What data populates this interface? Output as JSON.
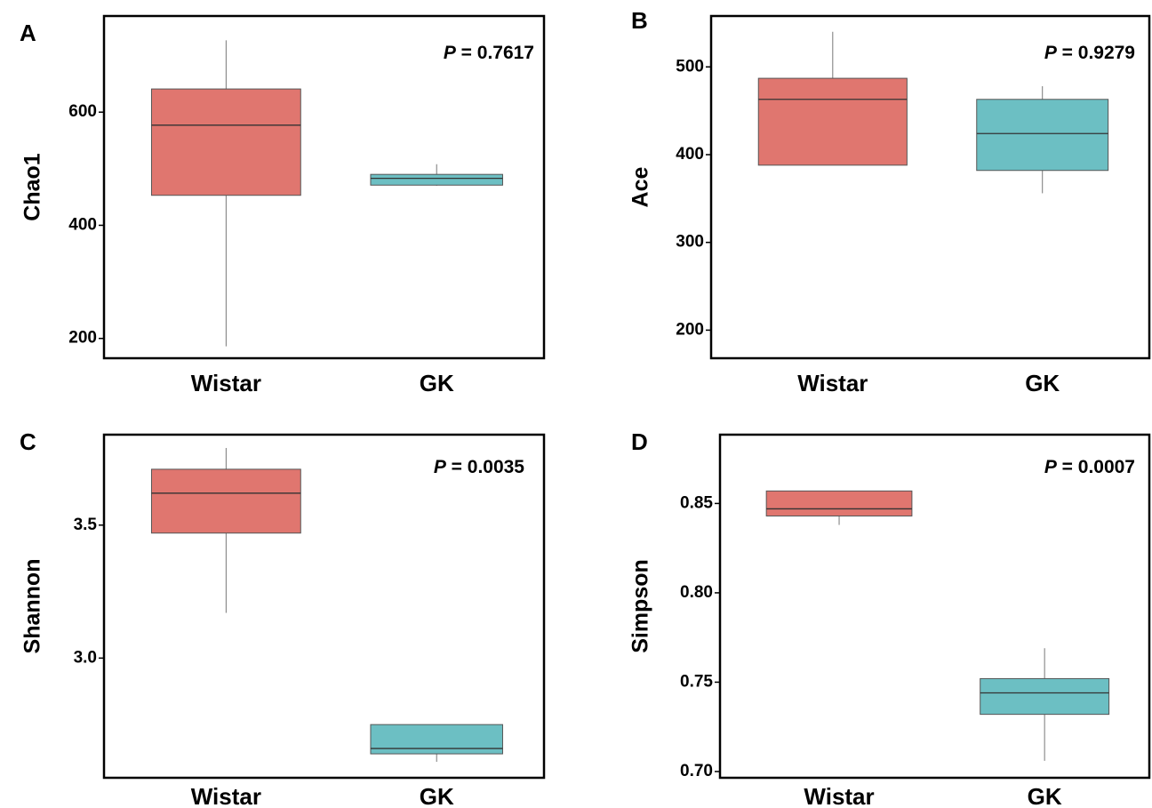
{
  "colors": {
    "wistar": "#E0766F",
    "gk": "#6CBFC3",
    "frame": "#000000",
    "median": "#333333",
    "whisker": "#777777"
  },
  "chart_data": [
    {
      "type": "box",
      "panel": "A",
      "ylabel": "Chao1",
      "p_value": "0.7617",
      "categories": [
        "Wistar",
        "GK"
      ],
      "yticks": [
        200,
        400,
        600
      ],
      "ylim": [
        165,
        770
      ],
      "boxes": [
        {
          "name": "Wistar",
          "min": 186,
          "q1": 453,
          "median": 577,
          "q3": 641,
          "max": 727
        },
        {
          "name": "GK",
          "min": 470,
          "q1": 471,
          "median": 483,
          "q3": 490,
          "max": 508
        }
      ]
    },
    {
      "type": "box",
      "panel": "B",
      "ylabel": "Ace",
      "p_value": "0.9279",
      "categories": [
        "Wistar",
        "GK"
      ],
      "yticks": [
        200,
        300,
        400,
        500
      ],
      "ylim": [
        168,
        558
      ],
      "boxes": [
        {
          "name": "Wistar",
          "min": 388,
          "q1": 388,
          "median": 463,
          "q3": 487,
          "max": 540
        },
        {
          "name": "GK",
          "min": 356,
          "q1": 382,
          "median": 424,
          "q3": 463,
          "max": 478
        }
      ]
    },
    {
      "type": "box",
      "panel": "C",
      "ylabel": "Shannon",
      "p_value": "0.0035",
      "categories": [
        "Wistar",
        "GK"
      ],
      "yticks": [
        "3.0",
        "3.5"
      ],
      "ylim": [
        2.55,
        3.84
      ],
      "boxes": [
        {
          "name": "Wistar",
          "min": 3.17,
          "q1": 3.47,
          "median": 3.62,
          "q3": 3.71,
          "max": 3.79
        },
        {
          "name": "GK",
          "min": 2.61,
          "q1": 2.64,
          "median": 2.66,
          "q3": 2.75,
          "max": 2.75
        }
      ]
    },
    {
      "type": "box",
      "panel": "D",
      "ylabel": "Simpson",
      "p_value": "0.0007",
      "categories": [
        "Wistar",
        "GK"
      ],
      "yticks": [
        "0.70",
        "0.75",
        "0.80",
        "0.85"
      ],
      "ylim": [
        0.6965,
        0.8885
      ],
      "boxes": [
        {
          "name": "Wistar",
          "min": 0.838,
          "q1": 0.843,
          "median": 0.847,
          "q3": 0.857,
          "max": 0.857
        },
        {
          "name": "GK",
          "min": 0.706,
          "q1": 0.732,
          "median": 0.744,
          "q3": 0.752,
          "max": 0.769
        }
      ]
    }
  ]
}
